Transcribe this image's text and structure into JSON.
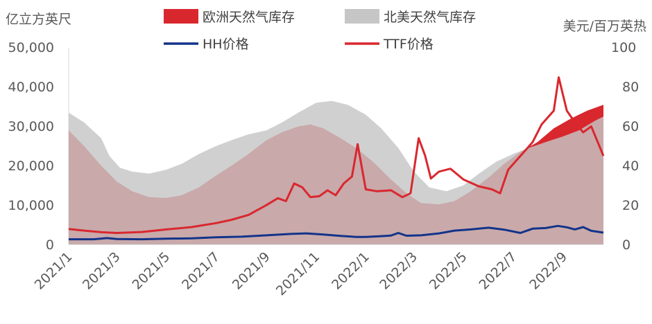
{
  "chart_data": {
    "type": "area",
    "left_axis": {
      "label": "亿立方英尺",
      "ylim": [
        0,
        50000
      ],
      "ticks": [
        0,
        10000,
        20000,
        30000,
        40000,
        50000
      ],
      "tick_labels": [
        "0",
        "10,000",
        "20,000",
        "30,000",
        "40,000",
        "50,000"
      ]
    },
    "right_axis": {
      "label": "美元/百万英热",
      "ylim": [
        0,
        100
      ],
      "ticks": [
        0,
        20,
        40,
        60,
        80,
        100
      ],
      "tick_labels": [
        "0",
        "20",
        "40",
        "60",
        "80",
        "100"
      ]
    },
    "x_range": [
      "2021-01-01",
      "2022-10-20"
    ],
    "x_ticks": [
      "2021-01-01",
      "2021-03-01",
      "2021-05-01",
      "2021-07-01",
      "2021-09-01",
      "2021-11-01",
      "2022-01-01",
      "2022-03-01",
      "2022-05-01",
      "2022-07-01",
      "2022-09-01"
    ],
    "x_tick_labels": [
      "2021/1",
      "2021/3",
      "2021/5",
      "2021/7",
      "2021/9",
      "2021/11",
      "2022/1",
      "2022/3",
      "2022/5",
      "2022/7",
      "2022/9"
    ],
    "legend_placement": "top",
    "series": [
      {
        "name": "欧洲天然气库存",
        "kind": "area",
        "axis": "left",
        "color": "#d9272e",
        "points": [
          [
            "2021-01-01",
            29000
          ],
          [
            "2021-01-20",
            25000
          ],
          [
            "2021-02-10",
            20000
          ],
          [
            "2021-03-01",
            16000
          ],
          [
            "2021-03-20",
            13500
          ],
          [
            "2021-04-10",
            12000
          ],
          [
            "2021-05-01",
            11800
          ],
          [
            "2021-05-20",
            12500
          ],
          [
            "2021-06-10",
            14500
          ],
          [
            "2021-07-01",
            17500
          ],
          [
            "2021-07-20",
            20000
          ],
          [
            "2021-08-10",
            23000
          ],
          [
            "2021-09-01",
            26500
          ],
          [
            "2021-09-20",
            28500
          ],
          [
            "2021-10-10",
            30000
          ],
          [
            "2021-10-25",
            30500
          ],
          [
            "2021-11-10",
            29500
          ],
          [
            "2021-12-01",
            27000
          ],
          [
            "2021-12-20",
            24500
          ],
          [
            "2022-01-10",
            21000
          ],
          [
            "2022-02-01",
            16500
          ],
          [
            "2022-02-20",
            13000
          ],
          [
            "2022-03-10",
            10500
          ],
          [
            "2022-04-01",
            10200
          ],
          [
            "2022-04-20",
            11000
          ],
          [
            "2022-05-10",
            13500
          ],
          [
            "2022-06-01",
            17000
          ],
          [
            "2022-06-20",
            20500
          ],
          [
            "2022-07-10",
            23500
          ],
          [
            "2022-07-31",
            26000
          ],
          [
            "2022-08-20",
            29500
          ],
          [
            "2022-09-10",
            32000
          ],
          [
            "2022-09-30",
            34000
          ],
          [
            "2022-10-20",
            35500
          ]
        ]
      },
      {
        "name": "北美天然气库存",
        "kind": "area",
        "axis": "left",
        "color": "#c6c6c6",
        "points": [
          [
            "2021-01-01",
            33500
          ],
          [
            "2021-01-20",
            31000
          ],
          [
            "2021-02-10",
            27000
          ],
          [
            "2021-02-20",
            22500
          ],
          [
            "2021-03-05",
            19500
          ],
          [
            "2021-03-20",
            18500
          ],
          [
            "2021-04-10",
            18000
          ],
          [
            "2021-05-01",
            19000
          ],
          [
            "2021-05-20",
            20500
          ],
          [
            "2021-06-10",
            23000
          ],
          [
            "2021-07-01",
            25000
          ],
          [
            "2021-07-20",
            26500
          ],
          [
            "2021-08-10",
            28000
          ],
          [
            "2021-09-01",
            29000
          ],
          [
            "2021-09-20",
            31000
          ],
          [
            "2021-10-10",
            33500
          ],
          [
            "2021-11-01",
            36000
          ],
          [
            "2021-11-20",
            36500
          ],
          [
            "2021-12-10",
            35500
          ],
          [
            "2022-01-01",
            33000
          ],
          [
            "2022-01-20",
            29500
          ],
          [
            "2022-02-10",
            24500
          ],
          [
            "2022-03-01",
            18500
          ],
          [
            "2022-03-20",
            14500
          ],
          [
            "2022-04-10",
            13500
          ],
          [
            "2022-05-01",
            15000
          ],
          [
            "2022-05-20",
            18000
          ],
          [
            "2022-06-10",
            21000
          ],
          [
            "2022-07-01",
            23000
          ],
          [
            "2022-07-20",
            24500
          ],
          [
            "2022-08-10",
            26000
          ],
          [
            "2022-09-01",
            27500
          ],
          [
            "2022-09-20",
            29000
          ],
          [
            "2022-10-10",
            31500
          ],
          [
            "2022-10-20",
            32500
          ]
        ]
      },
      {
        "name": "HH价格",
        "kind": "line",
        "axis": "right",
        "color": "#12338a",
        "points": [
          [
            "2021-01-01",
            2.6
          ],
          [
            "2021-02-01",
            2.6
          ],
          [
            "2021-02-17",
            3.2
          ],
          [
            "2021-03-01",
            2.7
          ],
          [
            "2021-04-01",
            2.6
          ],
          [
            "2021-05-01",
            2.9
          ],
          [
            "2021-06-01",
            3.1
          ],
          [
            "2021-07-01",
            3.6
          ],
          [
            "2021-08-01",
            3.9
          ],
          [
            "2021-09-01",
            4.6
          ],
          [
            "2021-10-01",
            5.3
          ],
          [
            "2021-10-20",
            5.6
          ],
          [
            "2021-11-10",
            5.0
          ],
          [
            "2021-12-01",
            4.3
          ],
          [
            "2021-12-20",
            3.8
          ],
          [
            "2022-01-01",
            3.8
          ],
          [
            "2022-01-20",
            4.2
          ],
          [
            "2022-02-01",
            4.5
          ],
          [
            "2022-02-10",
            5.8
          ],
          [
            "2022-02-20",
            4.4
          ],
          [
            "2022-03-10",
            4.6
          ],
          [
            "2022-04-01",
            5.6
          ],
          [
            "2022-04-20",
            7.0
          ],
          [
            "2022-05-10",
            7.6
          ],
          [
            "2022-06-01",
            8.5
          ],
          [
            "2022-06-20",
            7.5
          ],
          [
            "2022-07-10",
            5.8
          ],
          [
            "2022-07-25",
            8.0
          ],
          [
            "2022-08-10",
            8.3
          ],
          [
            "2022-08-25",
            9.4
          ],
          [
            "2022-09-05",
            8.7
          ],
          [
            "2022-09-15",
            7.6
          ],
          [
            "2022-09-25",
            8.8
          ],
          [
            "2022-10-05",
            6.9
          ],
          [
            "2022-10-20",
            6.0
          ]
        ]
      },
      {
        "name": "TTF价格",
        "kind": "line",
        "axis": "right",
        "color": "#d9272e",
        "points": [
          [
            "2021-01-01",
            7.8
          ],
          [
            "2021-01-20",
            7.0
          ],
          [
            "2021-02-10",
            6.2
          ],
          [
            "2021-03-01",
            5.8
          ],
          [
            "2021-04-01",
            6.3
          ],
          [
            "2021-05-01",
            7.6
          ],
          [
            "2021-06-01",
            8.8
          ],
          [
            "2021-07-01",
            10.8
          ],
          [
            "2021-07-20",
            12.5
          ],
          [
            "2021-08-10",
            15.0
          ],
          [
            "2021-09-01",
            20.0
          ],
          [
            "2021-09-15",
            23.5
          ],
          [
            "2021-09-25",
            22.0
          ],
          [
            "2021-10-05",
            31.0
          ],
          [
            "2021-10-15",
            29.0
          ],
          [
            "2021-10-25",
            24.0
          ],
          [
            "2021-11-05",
            24.5
          ],
          [
            "2021-11-15",
            27.5
          ],
          [
            "2021-11-25",
            25.0
          ],
          [
            "2021-12-05",
            31.0
          ],
          [
            "2021-12-15",
            34.5
          ],
          [
            "2021-12-22",
            51.0
          ],
          [
            "2022-01-01",
            28.0
          ],
          [
            "2022-01-15",
            27.0
          ],
          [
            "2022-02-01",
            27.5
          ],
          [
            "2022-02-15",
            24.0
          ],
          [
            "2022-02-25",
            26.0
          ],
          [
            "2022-03-07",
            54.0
          ],
          [
            "2022-03-15",
            45.0
          ],
          [
            "2022-03-22",
            33.5
          ],
          [
            "2022-04-01",
            37.0
          ],
          [
            "2022-04-15",
            38.5
          ],
          [
            "2022-05-01",
            33.0
          ],
          [
            "2022-05-20",
            29.5
          ],
          [
            "2022-06-05",
            28.0
          ],
          [
            "2022-06-15",
            26.0
          ],
          [
            "2022-06-25",
            38.0
          ],
          [
            "2022-07-10",
            45.0
          ],
          [
            "2022-07-25",
            52.0
          ],
          [
            "2022-08-05",
            61.0
          ],
          [
            "2022-08-20",
            68.0
          ],
          [
            "2022-08-26",
            85.0
          ],
          [
            "2022-09-05",
            68.0
          ],
          [
            "2022-09-15",
            62.0
          ],
          [
            "2022-09-25",
            57.0
          ],
          [
            "2022-10-05",
            60.0
          ],
          [
            "2022-10-20",
            45.0
          ]
        ]
      }
    ]
  }
}
